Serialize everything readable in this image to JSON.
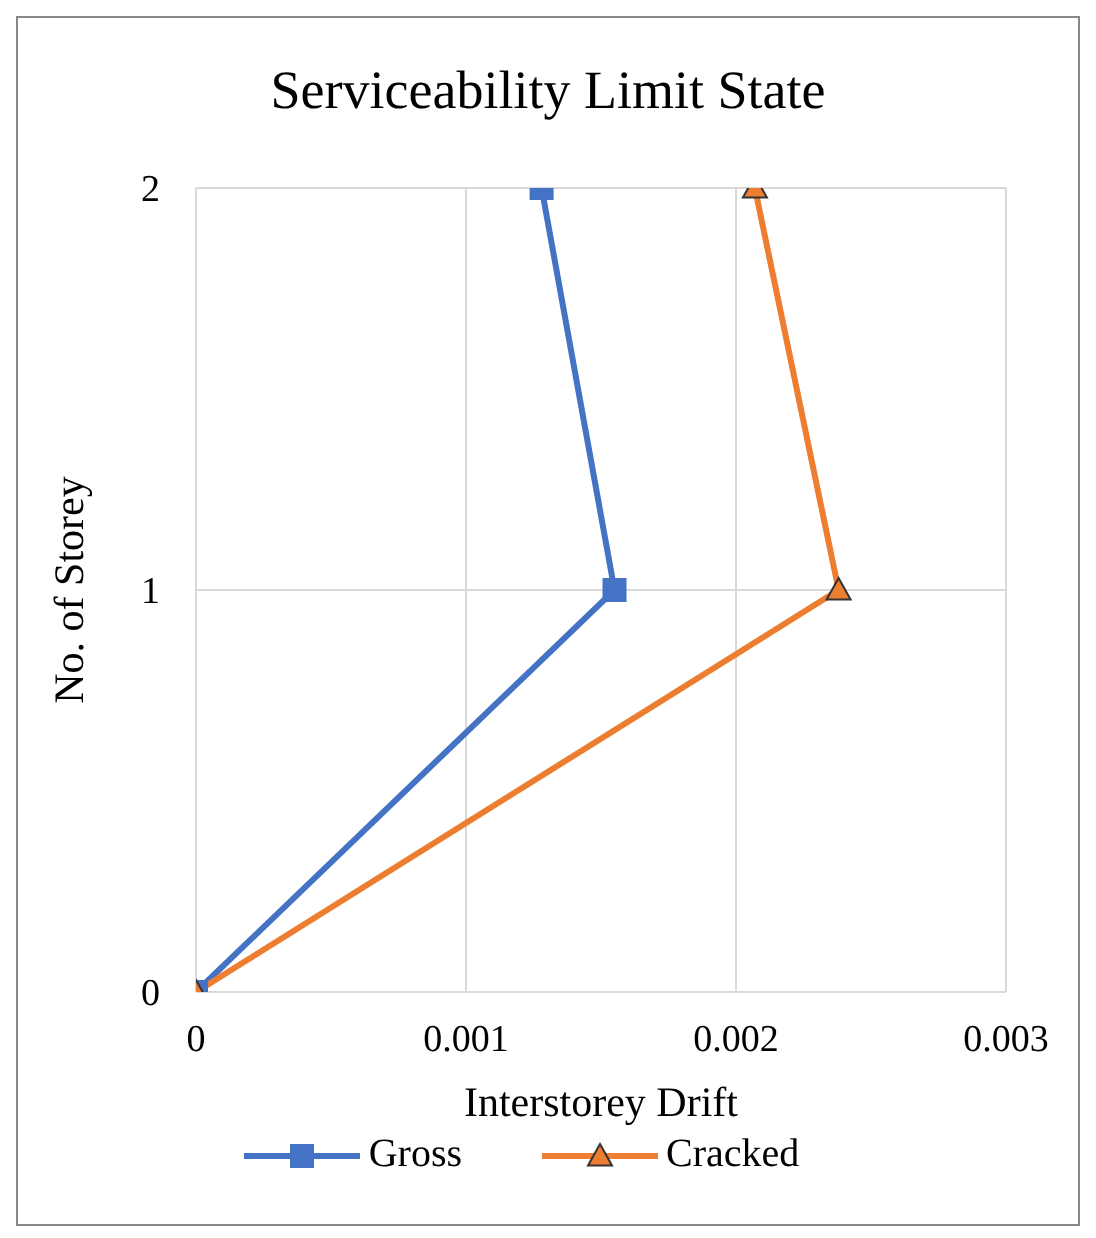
{
  "chart_data": {
    "type": "line",
    "title": "Serviceability Limit State",
    "xlabel": "Interstorey Drift",
    "ylabel": "No. of Storey",
    "series": [
      {
        "name": "Gross",
        "color": "#4472c4",
        "marker": "square",
        "x": [
          0,
          0.00155,
          0.00128
        ],
        "values": [
          0,
          1,
          2
        ]
      },
      {
        "name": "Cracked",
        "color": "#ed7d31",
        "marker": "triangle",
        "x": [
          0,
          0.00238,
          0.00207
        ],
        "values": [
          0,
          1,
          2
        ]
      }
    ],
    "xlim": [
      0,
      0.003
    ],
    "xticks": [
      0,
      0.001,
      0.002,
      0.003
    ],
    "ylim": [
      0,
      2
    ],
    "yticks": [
      0,
      1,
      2
    ],
    "grid": true,
    "legend": "bottom"
  }
}
